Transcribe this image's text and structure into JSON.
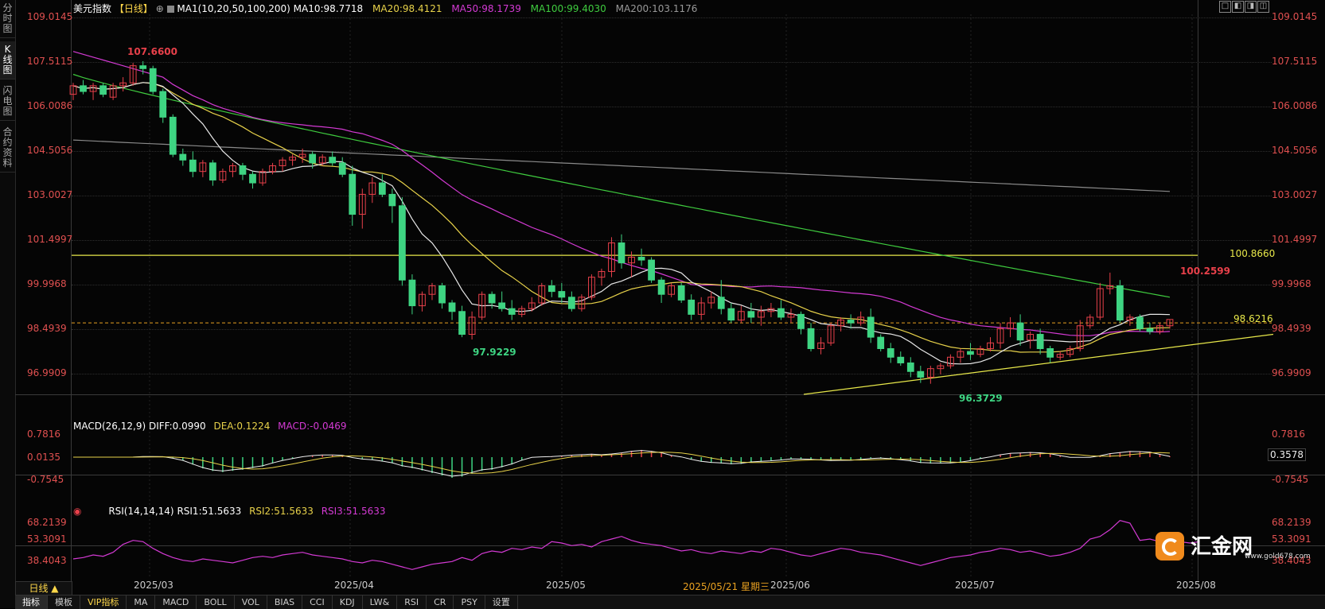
{
  "left_tabs": [
    "分时图",
    "K线图",
    "闪电图",
    "合约资料"
  ],
  "header": {
    "symbol": "美元指数",
    "period": "【日线】",
    "ma_label": "MA1(10,20,50,100,200)",
    "ma10": "MA10:98.7718",
    "ma20": "MA20:98.4121",
    "ma50": "MA50:98.1739",
    "ma100": "MA100:99.4030",
    "ma200": "MA200:103.1176"
  },
  "window_buttons": [
    "□",
    "◧",
    "◨",
    "◫"
  ],
  "price_axis": [
    "109.0145",
    "107.5115",
    "106.0086",
    "104.5056",
    "103.0027",
    "101.4997",
    "99.9968",
    "98.4939",
    "96.9909"
  ],
  "price_annotations": {
    "high": "107.6600",
    "low1": "97.9229",
    "low2": "96.3729",
    "high2": "100.2599",
    "hline": "100.8660",
    "last": "98.6216"
  },
  "macd": {
    "label": "MACD(26,12,9)",
    "diff": "DIFF:0.0990",
    "dea": "DEA:0.1224",
    "macd": "MACD:-0.0469",
    "axis": [
      "0.7816",
      "0.0135",
      "-0.7545"
    ],
    "current": "0.3578"
  },
  "rsi": {
    "label": "RSI(14,14,14)",
    "rsi1": "RSI1:51.5633",
    "rsi2": "RSI2:51.5633",
    "rsi3": "RSI3:51.5633",
    "axis": [
      "68.2139",
      "53.3091",
      "38.4043"
    ]
  },
  "date_axis": [
    "2025/03",
    "2025/04",
    "2025/05",
    "2025/06",
    "2025/07",
    "2025/08"
  ],
  "crosshair_date": "2025/05/21 星期三",
  "period_button": "日线 ▲",
  "bottom_tabs": [
    "指标",
    "模板",
    "VIP指标",
    "MA",
    "MACD",
    "BOLL",
    "VOL",
    "BIAS",
    "CCI",
    "KDJ",
    "LW&",
    "RSI",
    "CR",
    "PSY",
    "设置"
  ],
  "logo": {
    "name": "汇金网",
    "url": "www.gold678.com"
  },
  "colors": {
    "up": "#e8404a",
    "down": "#3ed482",
    "ma10": "#e8e8e8",
    "ma20": "#e8d24a",
    "ma50": "#d43ad4",
    "ma100": "#3fcc3f",
    "ma200": "#8a8a8a",
    "axis_text": "#e05050",
    "hline": "#e8e84a"
  },
  "chart_data": {
    "type": "candlestick",
    "ylim": [
      96.0,
      109.3
    ],
    "x_months": [
      "2025/03",
      "2025/04",
      "2025/05",
      "2025/06",
      "2025/07",
      "2025/08"
    ],
    "candles": [
      [
        106.5,
        106.9,
        106.3,
        106.8
      ],
      [
        106.8,
        107.0,
        106.5,
        106.6
      ],
      [
        106.6,
        106.9,
        106.3,
        106.8
      ],
      [
        106.8,
        106.9,
        106.4,
        106.5
      ],
      [
        106.4,
        106.9,
        106.3,
        106.8
      ],
      [
        106.8,
        107.1,
        106.6,
        106.9
      ],
      [
        106.9,
        107.6,
        106.8,
        107.5
      ],
      [
        107.5,
        107.66,
        107.2,
        107.4
      ],
      [
        107.4,
        107.5,
        106.5,
        106.6
      ],
      [
        106.6,
        106.7,
        105.5,
        105.7
      ],
      [
        105.7,
        105.8,
        104.3,
        104.4
      ],
      [
        104.4,
        104.6,
        104.0,
        104.2
      ],
      [
        104.2,
        104.5,
        103.6,
        103.8
      ],
      [
        103.8,
        104.2,
        103.6,
        104.1
      ],
      [
        104.1,
        104.2,
        103.3,
        103.5
      ],
      [
        103.5,
        103.9,
        103.4,
        103.8
      ],
      [
        103.8,
        104.1,
        103.6,
        104.0
      ],
      [
        104.0,
        104.1,
        103.5,
        103.7
      ],
      [
        103.7,
        103.8,
        103.2,
        103.4
      ],
      [
        103.4,
        103.9,
        103.3,
        103.8
      ],
      [
        103.8,
        104.1,
        103.7,
        104.0
      ],
      [
        104.0,
        104.3,
        103.8,
        104.2
      ],
      [
        104.2,
        104.4,
        104.0,
        104.3
      ],
      [
        104.3,
        104.6,
        104.1,
        104.4
      ],
      [
        104.4,
        104.5,
        103.9,
        104.1
      ],
      [
        104.1,
        104.4,
        104.0,
        104.3
      ],
      [
        104.3,
        104.5,
        104.0,
        104.1
      ],
      [
        104.1,
        104.3,
        103.6,
        103.7
      ],
      [
        103.7,
        104.0,
        101.9,
        102.3
      ],
      [
        102.3,
        103.2,
        101.8,
        103.0
      ],
      [
        103.0,
        103.6,
        102.7,
        103.4
      ],
      [
        103.4,
        103.7,
        102.9,
        103.0
      ],
      [
        103.0,
        103.2,
        102.0,
        102.6
      ],
      [
        102.6,
        102.9,
        99.8,
        100.0
      ],
      [
        100.0,
        100.2,
        98.8,
        99.1
      ],
      [
        99.1,
        99.6,
        98.9,
        99.5
      ],
      [
        99.5,
        99.9,
        99.3,
        99.8
      ],
      [
        99.8,
        99.9,
        99.0,
        99.2
      ],
      [
        99.2,
        99.3,
        98.6,
        98.9
      ],
      [
        98.9,
        99.1,
        98.0,
        98.1
      ],
      [
        98.1,
        98.9,
        97.92,
        98.7
      ],
      [
        98.7,
        99.6,
        98.6,
        99.5
      ],
      [
        99.5,
        99.6,
        99.0,
        99.2
      ],
      [
        99.2,
        99.6,
        98.9,
        99.0
      ],
      [
        99.0,
        99.3,
        98.6,
        98.8
      ],
      [
        98.8,
        99.1,
        98.7,
        99.0
      ],
      [
        99.0,
        99.4,
        98.9,
        99.2
      ],
      [
        99.2,
        99.9,
        99.1,
        99.8
      ],
      [
        99.8,
        100.0,
        99.4,
        99.6
      ],
      [
        99.6,
        99.9,
        99.2,
        99.4
      ],
      [
        99.4,
        99.6,
        98.9,
        99.0
      ],
      [
        99.0,
        99.5,
        98.9,
        99.4
      ],
      [
        99.4,
        100.2,
        99.3,
        100.1
      ],
      [
        100.1,
        100.4,
        99.8,
        100.3
      ],
      [
        100.3,
        101.5,
        100.1,
        101.3
      ],
      [
        101.3,
        101.6,
        100.4,
        100.6
      ],
      [
        100.6,
        101.0,
        100.1,
        100.8
      ],
      [
        100.8,
        101.1,
        100.5,
        100.7
      ],
      [
        100.7,
        100.8,
        99.9,
        100.0
      ],
      [
        100.0,
        100.1,
        99.2,
        99.5
      ],
      [
        99.5,
        99.9,
        99.4,
        99.8
      ],
      [
        99.8,
        99.9,
        99.2,
        99.3
      ],
      [
        99.3,
        99.5,
        98.6,
        98.8
      ],
      [
        98.8,
        99.4,
        98.6,
        99.2
      ],
      [
        99.2,
        99.6,
        99.0,
        99.4
      ],
      [
        99.4,
        100.0,
        98.8,
        99.0
      ],
      [
        99.0,
        99.2,
        98.5,
        98.6
      ],
      [
        98.6,
        99.1,
        98.5,
        98.9
      ],
      [
        98.9,
        99.2,
        98.5,
        98.7
      ],
      [
        98.7,
        99.1,
        98.4,
        98.9
      ],
      [
        98.9,
        99.2,
        98.7,
        99.0
      ],
      [
        99.0,
        99.3,
        98.6,
        98.7
      ],
      [
        98.7,
        99.0,
        98.5,
        98.8
      ],
      [
        98.8,
        98.9,
        98.1,
        98.3
      ],
      [
        98.3,
        98.5,
        97.5,
        97.6
      ],
      [
        97.6,
        98.0,
        97.4,
        97.8
      ],
      [
        97.8,
        98.5,
        97.7,
        98.4
      ],
      [
        98.4,
        98.7,
        98.2,
        98.6
      ],
      [
        98.6,
        98.8,
        98.3,
        98.5
      ],
      [
        98.5,
        98.9,
        98.4,
        98.7
      ],
      [
        98.7,
        99.0,
        97.8,
        98.0
      ],
      [
        98.0,
        98.1,
        97.5,
        97.6
      ],
      [
        97.6,
        97.8,
        97.1,
        97.3
      ],
      [
        97.3,
        97.5,
        97.0,
        97.1
      ],
      [
        97.1,
        97.3,
        96.6,
        96.8
      ],
      [
        96.8,
        97.0,
        96.4,
        96.6
      ],
      [
        96.6,
        97.0,
        96.37,
        96.9
      ],
      [
        96.9,
        97.1,
        96.7,
        97.0
      ],
      [
        97.0,
        97.4,
        96.9,
        97.3
      ],
      [
        97.3,
        97.6,
        97.1,
        97.5
      ],
      [
        97.5,
        97.8,
        97.2,
        97.4
      ],
      [
        97.4,
        97.7,
        97.3,
        97.6
      ],
      [
        97.6,
        98.0,
        97.5,
        97.8
      ],
      [
        97.8,
        98.5,
        97.6,
        98.3
      ],
      [
        98.3,
        98.7,
        98.0,
        98.5
      ],
      [
        98.5,
        98.8,
        97.7,
        97.9
      ],
      [
        97.9,
        98.2,
        97.6,
        98.1
      ],
      [
        98.1,
        98.3,
        97.4,
        97.6
      ],
      [
        97.6,
        97.7,
        97.1,
        97.3
      ],
      [
        97.3,
        97.5,
        97.2,
        97.4
      ],
      [
        97.4,
        97.7,
        97.3,
        97.6
      ],
      [
        97.6,
        98.6,
        97.5,
        98.4
      ],
      [
        98.4,
        98.8,
        98.3,
        98.7
      ],
      [
        98.7,
        99.9,
        98.6,
        99.7
      ],
      [
        99.7,
        100.26,
        99.5,
        99.8
      ],
      [
        99.8,
        100.0,
        98.5,
        98.6
      ],
      [
        98.6,
        98.8,
        98.4,
        98.7
      ],
      [
        98.7,
        98.8,
        98.2,
        98.3
      ],
      [
        98.3,
        98.5,
        98.1,
        98.2
      ],
      [
        98.2,
        98.5,
        98.1,
        98.4
      ],
      [
        98.4,
        98.6,
        98.3,
        98.62
      ]
    ],
    "horizontal_line": 100.866,
    "dashed_line": 98.5,
    "trendline": [
      [
        96.0,
        0.57
      ],
      [
        98.1,
        1.0
      ]
    ],
    "ma200": [
      104.9,
      103.1
    ],
    "rsi_values": [
      39,
      40,
      42,
      41,
      44,
      50,
      53,
      52,
      47,
      43,
      40,
      38,
      37,
      39,
      38,
      37,
      36,
      38,
      40,
      41,
      40,
      42,
      43,
      44,
      42,
      41,
      40,
      39,
      37,
      36,
      38,
      37,
      35,
      33,
      31,
      33,
      35,
      36,
      37,
      40,
      38,
      43,
      45,
      44,
      47,
      46,
      48,
      47,
      52,
      51,
      49,
      50,
      48,
      52,
      54,
      56,
      53,
      51,
      50,
      49,
      47,
      45,
      46,
      44,
      43,
      45,
      44,
      43,
      45,
      44,
      47,
      46,
      44,
      42,
      41,
      43,
      45,
      47,
      46,
      44,
      43,
      42,
      40,
      38,
      36,
      34,
      36,
      38,
      40,
      41,
      42,
      44,
      45,
      47,
      46,
      44,
      45,
      43,
      41,
      42,
      44,
      47,
      54,
      56,
      61,
      68,
      66,
      53,
      54,
      52,
      50,
      52,
      51,
      52
    ]
  }
}
